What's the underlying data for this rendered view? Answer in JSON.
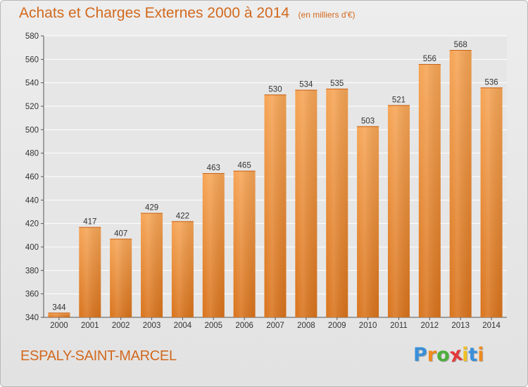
{
  "chart_data": {
    "type": "bar",
    "title": "Achats et Charges Externes 2000 à 2014",
    "subtitle": "(en milliers d'€)",
    "categories": [
      "2000",
      "2001",
      "2002",
      "2003",
      "2004",
      "2005",
      "2006",
      "2007",
      "2008",
      "2009",
      "2010",
      "2011",
      "2012",
      "2013",
      "2014"
    ],
    "values": [
      344,
      417,
      407,
      429,
      422,
      463,
      465,
      530,
      534,
      535,
      503,
      521,
      556,
      568,
      536
    ],
    "ylim": [
      340,
      580
    ],
    "yticks": [
      340,
      360,
      380,
      400,
      420,
      440,
      460,
      480,
      500,
      520,
      540,
      560,
      580
    ],
    "grid": true,
    "bar_color": "#f0923a",
    "bar_color_dark": "#d9731c"
  },
  "footer": {
    "place": "ESPALY-SAINT-MARCEL",
    "logo": {
      "letters": [
        "P",
        "r",
        "o",
        "x",
        "i",
        "t",
        "i"
      ],
      "colors": [
        "#3a8fd8",
        "#f08a1c",
        "#4cae3c",
        "#e23a3a",
        "#f0c020",
        "#3a8fd8",
        "#f08a1c"
      ]
    }
  },
  "colors": {
    "accent": "#d2691e",
    "grid": "#ffffff"
  }
}
